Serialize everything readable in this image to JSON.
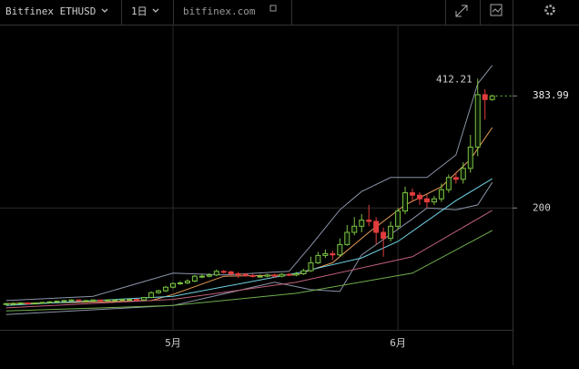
{
  "toolbar": {
    "symbol": "Bitfinex ETHUSD",
    "interval": "1日",
    "link": "bitfinex.com"
  },
  "chart_data": {
    "type": "candlestick",
    "x": [
      0,
      1,
      2,
      3,
      4,
      5,
      6,
      7,
      8,
      9,
      10,
      11,
      12,
      13,
      14,
      15,
      16,
      17,
      18,
      19,
      20,
      21,
      22,
      23,
      24,
      25,
      26,
      27,
      28,
      29,
      30,
      31,
      32,
      33,
      34,
      35,
      36,
      37,
      38,
      39,
      40,
      41,
      42,
      43,
      44,
      45,
      46,
      47,
      48,
      49,
      50,
      51,
      52,
      53,
      54,
      55,
      56,
      57,
      58,
      59,
      60,
      61,
      62,
      63,
      64,
      65,
      66,
      67
    ],
    "open": [
      42,
      43,
      43,
      44,
      43,
      44,
      45,
      46,
      47,
      48,
      49,
      48,
      48,
      49,
      48,
      49,
      49,
      50,
      50,
      49,
      53,
      61,
      64,
      70,
      76,
      77,
      80,
      88,
      88,
      90,
      96,
      95,
      92,
      91,
      89,
      88,
      88,
      90,
      88,
      91,
      90,
      92,
      97,
      110,
      122,
      125,
      123,
      140,
      160,
      170,
      180,
      178,
      160,
      150,
      170,
      195,
      225,
      221,
      215,
      210,
      215,
      230,
      250,
      247,
      265,
      300,
      386,
      378
    ],
    "high": [
      44,
      45,
      45,
      45,
      45,
      46,
      47,
      48,
      49,
      50,
      50,
      49,
      50,
      50,
      50,
      50,
      51,
      51,
      51,
      54,
      63,
      66,
      72,
      78,
      80,
      83,
      90,
      92,
      93,
      99,
      98,
      97,
      95,
      93,
      92,
      91,
      92,
      92,
      93,
      93,
      95,
      100,
      120,
      128,
      132,
      130,
      150,
      172,
      185,
      190,
      205,
      185,
      168,
      178,
      200,
      235,
      232,
      226,
      222,
      220,
      240,
      255,
      258,
      275,
      320,
      412.21,
      395,
      386
    ],
    "low": [
      41,
      42,
      42,
      42,
      42,
      43,
      44,
      45,
      46,
      47,
      47,
      47,
      47,
      47,
      47,
      48,
      48,
      49,
      48,
      48,
      52,
      59,
      62,
      68,
      74,
      75,
      78,
      85,
      86,
      88,
      92,
      89,
      85,
      87,
      86,
      86,
      86,
      86,
      86,
      88,
      88,
      90,
      95,
      108,
      118,
      115,
      120,
      138,
      155,
      160,
      170,
      140,
      120,
      145,
      165,
      190,
      210,
      205,
      200,
      205,
      210,
      225,
      240,
      240,
      258,
      285,
      345,
      376
    ],
    "close": [
      43,
      43,
      44,
      43,
      44,
      45,
      46,
      47,
      48,
      49,
      48,
      48,
      49,
      48,
      49,
      49,
      50,
      50,
      49,
      53,
      61,
      64,
      70,
      76,
      77,
      80,
      88,
      88,
      90,
      96,
      95,
      92,
      91,
      89,
      88,
      88,
      90,
      88,
      91,
      90,
      92,
      97,
      110,
      122,
      125,
      123,
      140,
      160,
      170,
      180,
      178,
      160,
      150,
      170,
      195,
      225,
      221,
      215,
      210,
      215,
      230,
      250,
      247,
      265,
      300,
      386,
      378,
      383.99
    ],
    "up_color": "#7cc242",
    "down_color": "#e03c3c",
    "lines": [
      {
        "color": "#8a93a8",
        "x": [
          0,
          12,
          23,
          30,
          39,
          42,
          46,
          49,
          53,
          58,
          62,
          65,
          67
        ],
        "values": [
          48,
          55,
          93,
          90,
          96,
          138,
          197,
          227,
          250,
          250,
          287,
          404,
          434
        ]
      },
      {
        "color": "#8a93a8",
        "x": [
          0,
          23,
          37,
          42,
          46,
          49,
          56,
          58,
          62,
          65,
          67
        ],
        "values": [
          25,
          40,
          78,
          66,
          63,
          123,
          182,
          200,
          197,
          205,
          242
        ]
      },
      {
        "color": "#e8a05a",
        "x": [
          0,
          10,
          20,
          23,
          30,
          40,
          45,
          50,
          55,
          60,
          64,
          67
        ],
        "values": [
          43,
          45,
          48,
          58,
          88,
          90,
          110,
          160,
          205,
          235,
          280,
          332
        ]
      },
      {
        "color": "#6fd3e6",
        "x": [
          0,
          23,
          40,
          49,
          54,
          62,
          67
        ],
        "values": [
          40,
          55,
          93,
          118,
          145,
          212,
          248
        ]
      },
      {
        "color": "#c0607a",
        "x": [
          0,
          23,
          40,
          56,
          67
        ],
        "values": [
          36,
          50,
          78,
          120,
          196
        ]
      },
      {
        "color": "#6fae4e",
        "x": [
          0,
          23,
          40,
          56,
          67
        ],
        "values": [
          31,
          40,
          60,
          93,
          163
        ]
      }
    ],
    "xlim": [
      -0.84,
      69.8
    ],
    "ylim": [
      0,
      501
    ],
    "xticks": [
      {
        "value": 23,
        "label": "5月"
      },
      {
        "value": 54,
        "label": "6月"
      }
    ],
    "yticks": [
      200
    ],
    "last_price": 383.99,
    "grid": true
  }
}
